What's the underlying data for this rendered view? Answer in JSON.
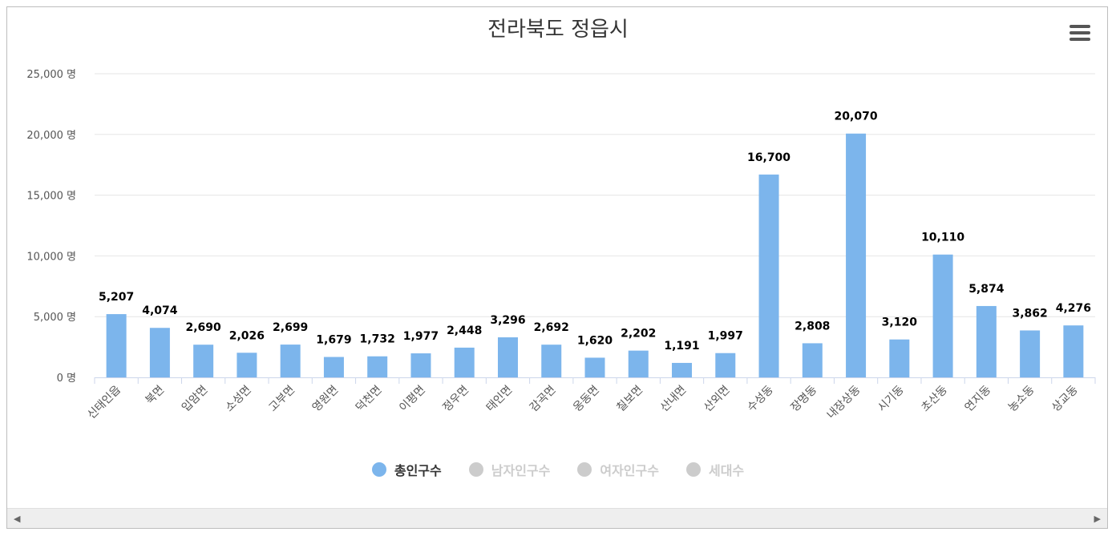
{
  "chart_data": {
    "type": "bar",
    "title": "전라북도 정읍시",
    "categories": [
      "신태인읍",
      "북면",
      "입암면",
      "소성면",
      "고부면",
      "영원면",
      "덕천면",
      "이평면",
      "정우면",
      "태인면",
      "감곡면",
      "옹동면",
      "칠보면",
      "산내면",
      "산외면",
      "수성동",
      "장명동",
      "내장상동",
      "시기동",
      "초산동",
      "연지동",
      "농소동",
      "상교동"
    ],
    "series": [
      {
        "name": "총인구수",
        "color": "#7cb5ec",
        "visible": true,
        "values": [
          5207,
          4074,
          2690,
          2026,
          2699,
          1679,
          1732,
          1977,
          2448,
          3296,
          2692,
          1620,
          2202,
          1191,
          1997,
          16700,
          2808,
          20070,
          3120,
          10110,
          5874,
          3862,
          4276
        ],
        "labels": [
          "5,207",
          "4,074",
          "2,690",
          "2,026",
          "2,699",
          "1,679",
          "1,732",
          "1,977",
          "2,448",
          "3,296",
          "2,692",
          "1,620",
          "2,202",
          "1,191",
          "1,997",
          "16,700",
          "2,808",
          "20,070",
          "3,120",
          "10,110",
          "5,874",
          "3,862",
          "4,276"
        ]
      }
    ],
    "ylim": [
      0,
      25000
    ],
    "yticks": [
      0,
      5000,
      10000,
      15000,
      20000,
      25000
    ],
    "ytick_labels": [
      "0 명",
      "5,000 명",
      "10,000 명",
      "15,000 명",
      "20,000 명",
      "25,000 명"
    ],
    "grid": true,
    "legend_position": "bottom-center"
  },
  "legend": [
    {
      "label": "총인구수",
      "color": "#7cb5ec",
      "active": true
    },
    {
      "label": "남자인구수",
      "color": "#cccccc",
      "active": false
    },
    {
      "label": "여자인구수",
      "color": "#cccccc",
      "active": false
    },
    {
      "label": "세대수",
      "color": "#cccccc",
      "active": false
    }
  ],
  "icons": {
    "menu": "hamburger-menu-icon",
    "scroll_left": "arrow-left-icon",
    "scroll_right": "arrow-right-icon"
  },
  "scroll_left_glyph": "◀",
  "scroll_right_glyph": "▶"
}
